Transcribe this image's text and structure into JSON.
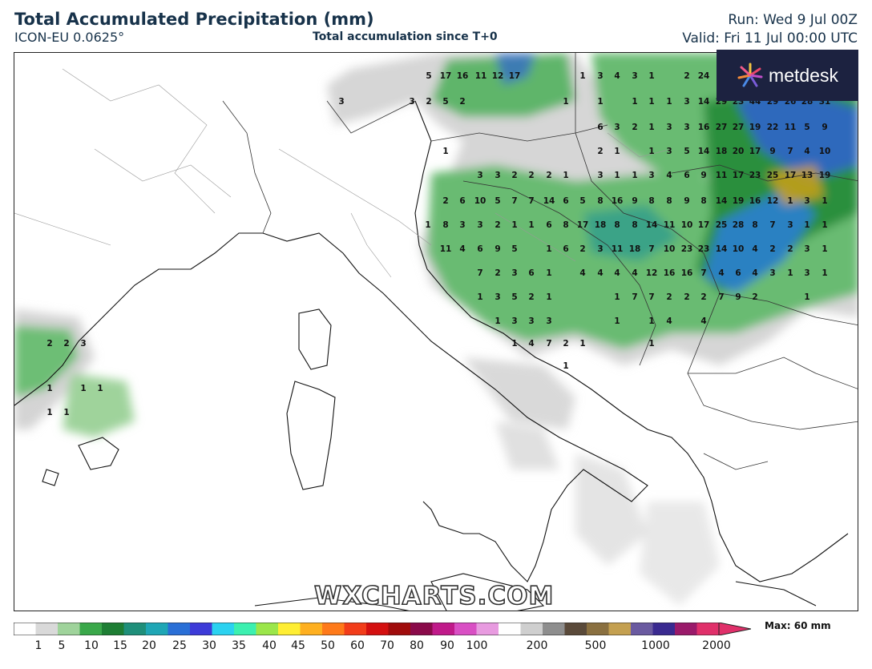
{
  "header": {
    "title": "Total Accumulated Precipitation (mm)",
    "model": "ICON-EU 0.0625°",
    "subtitle": "Total accumulation since T+0",
    "run": "Run: Wed 9 Jul 00Z",
    "valid": "Valid: Fri 11 Jul 00:00 UTC"
  },
  "logo": {
    "text": "metdesk",
    "icon": "burst-icon"
  },
  "watermark": "WXCHARTS.COM",
  "legend": {
    "ticks": [
      "1",
      "5",
      "10",
      "15",
      "20",
      "25",
      "30",
      "35",
      "40",
      "45",
      "50",
      "60",
      "70",
      "80",
      "90",
      "100",
      "200",
      "500",
      "1000",
      "2000"
    ],
    "max_label": "Max: 60 mm",
    "colors": [
      "#ffffff",
      "#d9d9d9",
      "#9fd39b",
      "#3aa84a",
      "#1e7e34",
      "#1f8f7a",
      "#1fa6b5",
      "#2a6fd6",
      "#3d3bd8",
      "#2bd2f0",
      "#3cf0b0",
      "#9be64a",
      "#ffee33",
      "#ffb020",
      "#ff7a1a",
      "#f23d1a",
      "#d41010",
      "#a00c0c",
      "#8a0a4a",
      "#c01a8a",
      "#d94fc4",
      "#e89be0",
      "#ffffff",
      "#cfcfcf",
      "#8e8e8e",
      "#5a4a3a",
      "#8a7040",
      "#c4a050",
      "#6a5aa0",
      "#3a2a90",
      "#9a1a6a",
      "#e0306a"
    ]
  },
  "map_values": [
    [
      "5",
      "17",
      "16",
      "11",
      "12",
      "17"
    ],
    [
      "3",
      "3",
      "2",
      "5",
      "2"
    ],
    [
      "1",
      "3",
      "4",
      "3",
      "1",
      "2",
      "24"
    ],
    [
      "1",
      "1",
      "1",
      "1",
      "1",
      "3",
      "14",
      "29",
      "23",
      "44",
      "29",
      "26",
      "28",
      "31"
    ],
    [
      "6",
      "3",
      "2",
      "1",
      "3",
      "3",
      "16",
      "27",
      "27",
      "19",
      "22",
      "11",
      "5",
      "9"
    ],
    [
      "1"
    ],
    [
      "2",
      "1",
      "1",
      "3",
      "5",
      "14",
      "18",
      "20",
      "17",
      "9",
      "7",
      "4",
      "10"
    ],
    [
      "3",
      "3",
      "2",
      "2",
      "2",
      "1",
      "3",
      "1",
      "1",
      "3",
      "4",
      "6",
      "9",
      "11",
      "17",
      "23",
      "25",
      "17",
      "13",
      "19"
    ],
    [
      "2",
      "6",
      "10",
      "5",
      "7",
      "7",
      "14",
      "6",
      "5",
      "8",
      "16",
      "9",
      "8",
      "8",
      "9",
      "8",
      "14",
      "19",
      "16",
      "12",
      "1",
      "3",
      "1"
    ],
    [
      "1",
      "8",
      "3",
      "3",
      "2",
      "1",
      "1",
      "6",
      "8",
      "17",
      "18",
      "8",
      "8",
      "14",
      "11",
      "10",
      "17",
      "25",
      "28",
      "8",
      "7",
      "3",
      "1",
      "1"
    ],
    [
      "11",
      "4",
      "6",
      "9",
      "5",
      "1",
      "6",
      "2",
      "3",
      "11",
      "18",
      "7",
      "10",
      "23",
      "23",
      "14",
      "10",
      "4",
      "2",
      "2",
      "3",
      "1"
    ],
    [
      "7",
      "2",
      "3",
      "6",
      "1",
      "4",
      "4",
      "4",
      "4",
      "12",
      "16",
      "16",
      "7",
      "4",
      "6",
      "4",
      "3",
      "1",
      "3",
      "1"
    ],
    [
      "1",
      "3",
      "5",
      "2",
      "1",
      "1",
      "7",
      "7",
      "2",
      "2",
      "2",
      "7",
      "9",
      "2",
      "1"
    ],
    [
      "1",
      "3",
      "3",
      "3",
      "1",
      "1",
      "4",
      "4"
    ],
    [
      "2",
      "2",
      "3"
    ],
    [
      "1",
      "4",
      "7",
      "2",
      "1",
      "1"
    ],
    [
      "1"
    ],
    [
      "1",
      "1",
      "1"
    ],
    [
      "1",
      "1"
    ]
  ]
}
